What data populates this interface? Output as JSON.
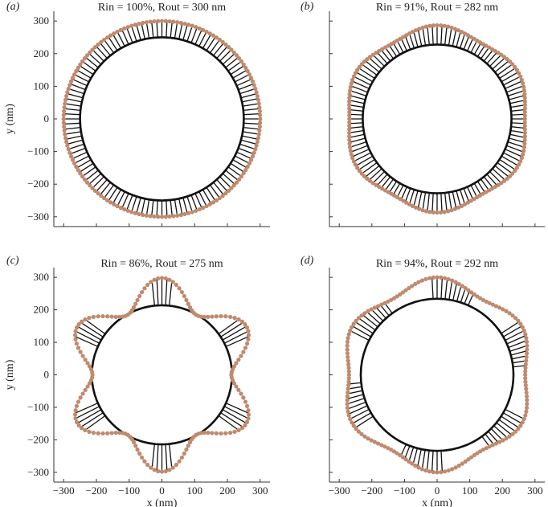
{
  "chart_data": [
    {
      "type": "scatter",
      "panel": "(a)",
      "title": "Rin = 100%, Rout = 300 nm",
      "xlabel": "",
      "ylabel": "y (nm)",
      "xlim": [
        -300,
        300
      ],
      "ylim": [
        -300,
        300
      ],
      "xticks": [],
      "yticks": [
        -300,
        -200,
        -100,
        0,
        100,
        200,
        300
      ],
      "inner_radius": 250,
      "outer_base": 300,
      "lobes": 0,
      "lobe_amplitude": 0,
      "gaps": []
    },
    {
      "type": "scatter",
      "panel": "(b)",
      "title": "Rin = 91%, Rout = 282 nm",
      "xlabel": "",
      "ylabel": "",
      "xlim": [
        -300,
        300
      ],
      "ylim": [
        -300,
        300
      ],
      "xticks": [],
      "yticks": [],
      "inner_radius": 228,
      "outer_base": 278,
      "lobes": 6,
      "lobe_amplitude": 9,
      "gaps": []
    },
    {
      "type": "scatter",
      "panel": "(c)",
      "title": "Rin = 86%, Rout = 275 nm",
      "xlabel": "x (nm)",
      "ylabel": "y (nm)",
      "xlim": [
        -300,
        300
      ],
      "ylim": [
        -300,
        300
      ],
      "xticks": [
        -300,
        -200,
        -100,
        0,
        100,
        200,
        300
      ],
      "yticks": [
        -300,
        -200,
        -100,
        0,
        100,
        200,
        300
      ],
      "inner_radius": 214,
      "outer_base": 255,
      "lobes": 6,
      "lobe_amplitude": 43,
      "gaps": [
        [
          -22,
          5
        ],
        [
          8,
          22
        ],
        [
          38,
          65
        ],
        [
          68,
          82
        ],
        [
          98,
          125
        ],
        [
          128,
          142
        ],
        [
          158,
          185
        ],
        [
          188,
          202
        ],
        [
          218,
          245
        ],
        [
          248,
          262
        ],
        [
          278,
          305
        ],
        [
          308,
          322
        ]
      ]
    },
    {
      "type": "scatter",
      "panel": "(d)",
      "title": "Rin = 94%, Rout = 292 nm",
      "xlabel": "x (nm)",
      "ylabel": "",
      "xlim": [
        -300,
        300
      ],
      "ylim": [
        -300,
        300
      ],
      "xticks": [
        -300,
        -200,
        -100,
        0,
        100,
        200,
        300
      ],
      "yticks": [],
      "inner_radius": 234,
      "outer_base": 285,
      "lobes": 6,
      "lobe_amplitude": 15,
      "gaps": [
        [
          -25,
          5
        ],
        [
          35,
          65
        ],
        [
          95,
          125
        ],
        [
          155,
          185
        ],
        [
          215,
          245
        ],
        [
          275,
          305
        ]
      ]
    }
  ],
  "colors": {
    "outer_points": "#c08a6e",
    "inner_circle": "#111111",
    "spokes": "#111111"
  }
}
